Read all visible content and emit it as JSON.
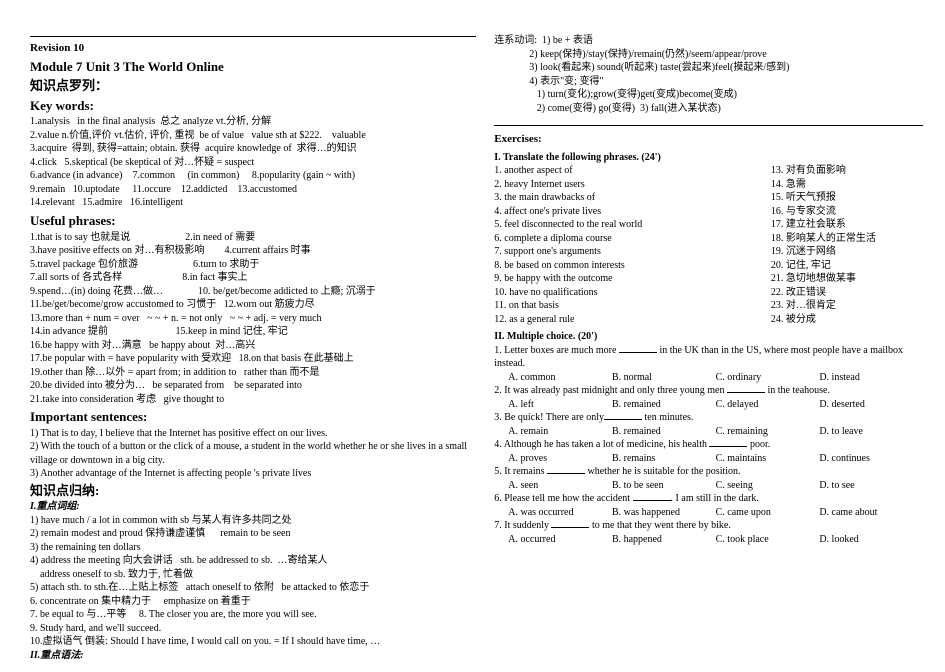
{
  "header": {
    "revision": "Revision 10",
    "unit_line": "Module 7      Unit 3    The World Online",
    "kn_list": "知识点罗列：",
    "key_words": "Key words:"
  },
  "keywords": [
    "1.analysis   in the final analysis  总之 analyze vt.分析, 分解",
    "2.value n.价值,评价 vt.估价, 评价, 重视  be of value   value sth at $222.    valuable",
    "3.acquire  得到, 获得=attain; obtain. 获得  acquire knowledge of  求得…的知识",
    "4.click   5.skeptical (be skeptical of 对…怀疑 = suspect",
    "6.advance (in advance)    7.common     (in common)     8.popularity (gain ~ with)",
    "9.remain   10.uptodate     11.occure    12.addicted    13.accustomed",
    "14.relevant   15.admire   16.intelligent"
  ],
  "useful_phrases_h": "Useful phrases:",
  "useful_phrases": [
    "1.that is to say 也就是说                      2.in need of 需要",
    "3.have positive effects on 对…有积极影响        4.current affairs 时事",
    "5.travel package 包价旅游                      6.turn to 求助于",
    "7.all sorts of 各式各样                        8.in fact 事实上",
    "9.spend…(in) doing 花费…做…              10. be/get/become addicted to 上瘾; 沉溺于",
    "11.be/get/become/grow accustomed to 习惯于   12.worn out 筋疲力尽",
    "13.more than + num = over   ~ ~ + n. = not only   ~ ~ + adj. = very much",
    "14.in advance 提前                           15.keep in mind 记住, 牢记",
    "16.be happy with 对…满意   be happy about  对…高兴",
    "17.be popular with = have popularity with 受欢迎   18.on that basis 在此基础上",
    "19.other than 除…以外 = apart from; in addition to   rather than 而不是",
    "20.be divided into 被分为…   be separated from    be separated into",
    "21.take into consideration 考虑   give thought to"
  ],
  "important_h": "Important sentences:",
  "important": [
    "1) That is to day, I believe that the Internet has positive effect on our lives.",
    "2) With the touch of a button or the click of a mouse, a student in the world whether he or she lives in a small village or downtown in a big city.",
    "3) Another advantage of the Internet is affecting people 's private lives"
  ],
  "kn_sum": "知识点归纳:",
  "focus_h": "I.重点词组:",
  "focus": [
    "1) have much / a lot in common with sb 与某人有许多共同之处",
    "2) remain modest and proud 保持谦虚谨慎      remain to be seen",
    "3) the remaining ten dollars",
    "4) address the meeting 向大会讲话   sth. be addressed to sb.  …寄给某人",
    "    address oneself to sb. 致力于, 忙着做",
    "5) attach sth. to sth.在…上贴上标签   attach oneself to 依附   be attacked to 依恋于",
    "6. concentrate on 集中精力于     emphasize on 着重于",
    "7. be equal to 与…平等     8. The closer you are, the more you will see.",
    "9. Study hard, and we'll succeed.",
    "10.虚拟语气 倒装: Should I have time, I would call on you. = If I should have time, …"
  ],
  "focus_tail": "II.重点语法:",
  "right_top": [
    "连系动词:  1) be + 表语",
    "              2) keep(保持)/stay(保持)/remain(仍然)/seem/appear/prove",
    "              3) look(看起来) sound(听起来) taste(尝起来)feel(摸起来/感到)",
    "              4) 表示\"变; 变得\"",
    "                 1) turn(变化);grow(变得)get(变成)become(变成)",
    "                 2) come(变得) go(变得)  3) fall(进入某状态)"
  ],
  "exercises_h": "Exercises:",
  "ex1_h": "I. Translate the following phrases. (24')",
  "ex1_left": [
    "1. another aspect of",
    "2. heavy Internet users",
    "3. the main drawbacks of",
    "4. affect one's private lives",
    "5. feel disconnected to the real world",
    "6. complete a diploma course",
    "7. support one's arguments",
    "8. be based on common interests",
    "9. be happy with the outcome",
    "10. have no qualifications",
    "11. on that basis",
    "12. as a general rule"
  ],
  "ex1_right": [
    "13. 对有负面影响",
    "14. 急需",
    "15. 听天气预报",
    "16. 与专家交流",
    "17. 建立社会联系",
    "18. 影响某人的正常生活",
    "19. 沉迷于网络",
    "20. 记住, 牢记",
    "21. 急切地想做某事",
    "22. 改正错误",
    "23. 对…很肯定",
    "24. 被分成"
  ],
  "ex2_h": "II. Multiple choice. (20')",
  "mc": [
    {
      "stem_pre": "1. Letter boxes are much more ",
      "stem_post": " in the UK than in the US, where most people have a mailbox instead.",
      "opts": [
        "A. common",
        "B. normal",
        "C. ordinary",
        "D. instead"
      ]
    },
    {
      "stem_pre": "2. It was already past midnight and only three young men ",
      "stem_post": " in the teahouse.",
      "opts": [
        "A. left",
        "B. remained",
        "C. delayed",
        "D. deserted"
      ]
    },
    {
      "stem_pre": "3. Be quick! There are only",
      "stem_post": " ten minutes.",
      "opts": [
        "A. remain",
        "B. remained",
        "C. remaining",
        "D. to leave"
      ]
    },
    {
      "stem_pre": "4. Although he has taken a lot of medicine, his health ",
      "stem_post": " poor.",
      "opts": [
        "A. proves",
        "B. remains",
        "C. maintains",
        "D. continues"
      ]
    },
    {
      "stem_pre": "5. It remains ",
      "stem_post": " whether he is suitable for the position.",
      "opts": [
        "A. seen",
        "B. to be seen",
        "C. seeing",
        "D. to see"
      ]
    },
    {
      "stem_pre": "6. Please tell me how the accident ",
      "stem_post": ". I am still in the dark.",
      "opts": [
        "A. was occurred",
        "B. was happened",
        "C. came upon",
        "D. came about"
      ]
    },
    {
      "stem_pre": "7. It suddenly ",
      "stem_post": " to me that they went there by bike.",
      "opts": [
        "A. occurred",
        "B. happened",
        "C. took place",
        "D. looked"
      ]
    }
  ]
}
